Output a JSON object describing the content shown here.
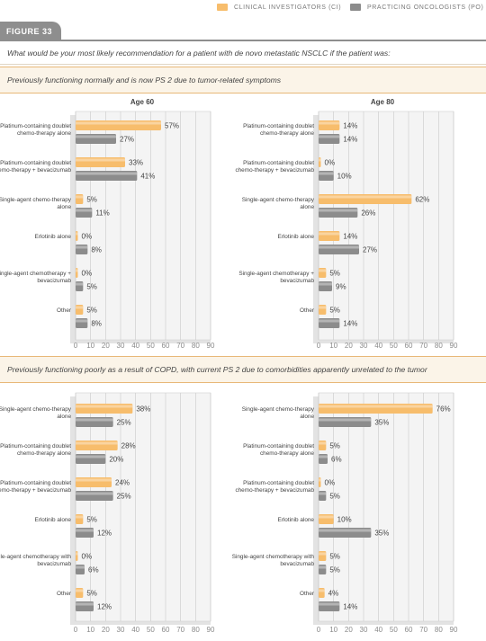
{
  "figure_label": "FIGURE 33",
  "question": "What would be your most likely recommendation for a patient with de novo metastatic NSCLC if the patient was:",
  "legend": [
    {
      "label": "CLINICAL INVESTIGATORS (CI)",
      "color": "#f7bd6c"
    },
    {
      "label": "PRACTICING ONCOLOGISTS (PO)",
      "color": "#8c8c8c"
    }
  ],
  "sections": [
    {
      "title": "Previously functioning normally and is now PS 2 due to tumor-related symptoms"
    },
    {
      "title": "Previously functioning poorly as a result of COPD, with current PS 2 due to comorbidities apparently unrelated to the tumor"
    }
  ],
  "chart_data": [
    {
      "type": "bar",
      "title": "Age 60",
      "categories": [
        "Platinum-containing doublet chemo-therapy alone",
        "Platinum-containing doublet chemo-therapy + bevacizumab",
        "Single-agent chemo-therapy alone",
        "Erlotinib alone",
        "Single-agent chemotherapy + bevacizumab",
        "Other"
      ],
      "series": [
        {
          "name": "CLINICAL INVESTIGATORS (CI)",
          "values": [
            57,
            33,
            5,
            0,
            0,
            5
          ],
          "labels": [
            "57%",
            "33%",
            "5%",
            "0%",
            "0%",
            "5%"
          ]
        },
        {
          "name": "PRACTICING ONCOLOGISTS (PO)",
          "values": [
            27,
            41,
            11,
            8,
            5,
            8
          ],
          "labels": [
            "27%",
            "41%",
            "11%",
            "8%",
            "5%",
            "8%"
          ]
        }
      ],
      "xticks": [
        "0",
        "10",
        "20",
        "30",
        "40",
        "50",
        "60",
        "70",
        "80",
        "90"
      ],
      "xlim": [
        0,
        90
      ]
    },
    {
      "type": "bar",
      "title": "Age 80",
      "categories": [
        "Platinum-containing doublet chemo-therapy alone",
        "Platinum-containing doublet chemo-therapy + bevacizumab",
        "Single-agent chemo-therapy alone",
        "Erlotinib alone",
        "Single-agent chemotherapy + bevacizumab",
        "Other"
      ],
      "series": [
        {
          "name": "CLINICAL INVESTIGATORS (CI)",
          "values": [
            14,
            0,
            62,
            14,
            5,
            5
          ],
          "labels": [
            "14%",
            "0%",
            "62%",
            "14%",
            "5%",
            "5%"
          ]
        },
        {
          "name": "PRACTICING ONCOLOGISTS (PO)",
          "values": [
            14,
            10,
            26,
            27,
            9,
            14
          ],
          "labels": [
            "14%",
            "10%",
            "26%",
            "27%",
            "9%",
            "14%"
          ]
        }
      ],
      "xticks": [
        "0",
        "10",
        "20",
        "30",
        "40",
        "50",
        "60",
        "70",
        "80",
        "90"
      ],
      "xlim": [
        0,
        90
      ]
    },
    {
      "type": "bar",
      "title": "",
      "categories": [
        "Single-agent chemo-therapy alone",
        "Platinum-containing doublet chemo-therapy alone",
        "Platinum-containing doublet chemo-therapy + bevacizumab",
        "Erlotinib alone",
        "Single-agent chemotherapy with bevacizumab",
        "Other"
      ],
      "series": [
        {
          "name": "CLINICAL INVESTIGATORS (CI)",
          "values": [
            38,
            28,
            24,
            5,
            0,
            5
          ],
          "labels": [
            "38%",
            "28%",
            "24%",
            "5%",
            "0%",
            "5%"
          ]
        },
        {
          "name": "PRACTICING ONCOLOGISTS (PO)",
          "values": [
            25,
            20,
            25,
            12,
            6,
            12
          ],
          "labels": [
            "25%",
            "20%",
            "25%",
            "12%",
            "6%",
            "12%"
          ]
        }
      ],
      "xticks": [
        "0",
        "10",
        "20",
        "30",
        "40",
        "50",
        "60",
        "70",
        "80",
        "90"
      ],
      "xlim": [
        0,
        90
      ]
    },
    {
      "type": "bar",
      "title": "",
      "categories": [
        "Single-agent chemo-therapy alone",
        "Platinum-containing doublet chemo-therapy alone",
        "Platinum-containing doublet chemo-therapy + bevacizumab",
        "Erlotinib alone",
        "Single-agent chemotherapy with bevacizumab",
        "Other"
      ],
      "series": [
        {
          "name": "CLINICAL INVESTIGATORS (CI)",
          "values": [
            76,
            5,
            0,
            10,
            5,
            4
          ],
          "labels": [
            "76%",
            "5%",
            "0%",
            "10%",
            "5%",
            "4%"
          ]
        },
        {
          "name": "PRACTICING ONCOLOGISTS (PO)",
          "values": [
            35,
            6,
            5,
            35,
            5,
            14
          ],
          "labels": [
            "35%",
            "6%",
            "5%",
            "35%",
            "5%",
            "14%"
          ]
        }
      ],
      "xticks": [
        "0",
        "10",
        "20",
        "30",
        "40",
        "50",
        "60",
        "70",
        "80",
        "90"
      ],
      "xlim": [
        0,
        90
      ]
    }
  ]
}
